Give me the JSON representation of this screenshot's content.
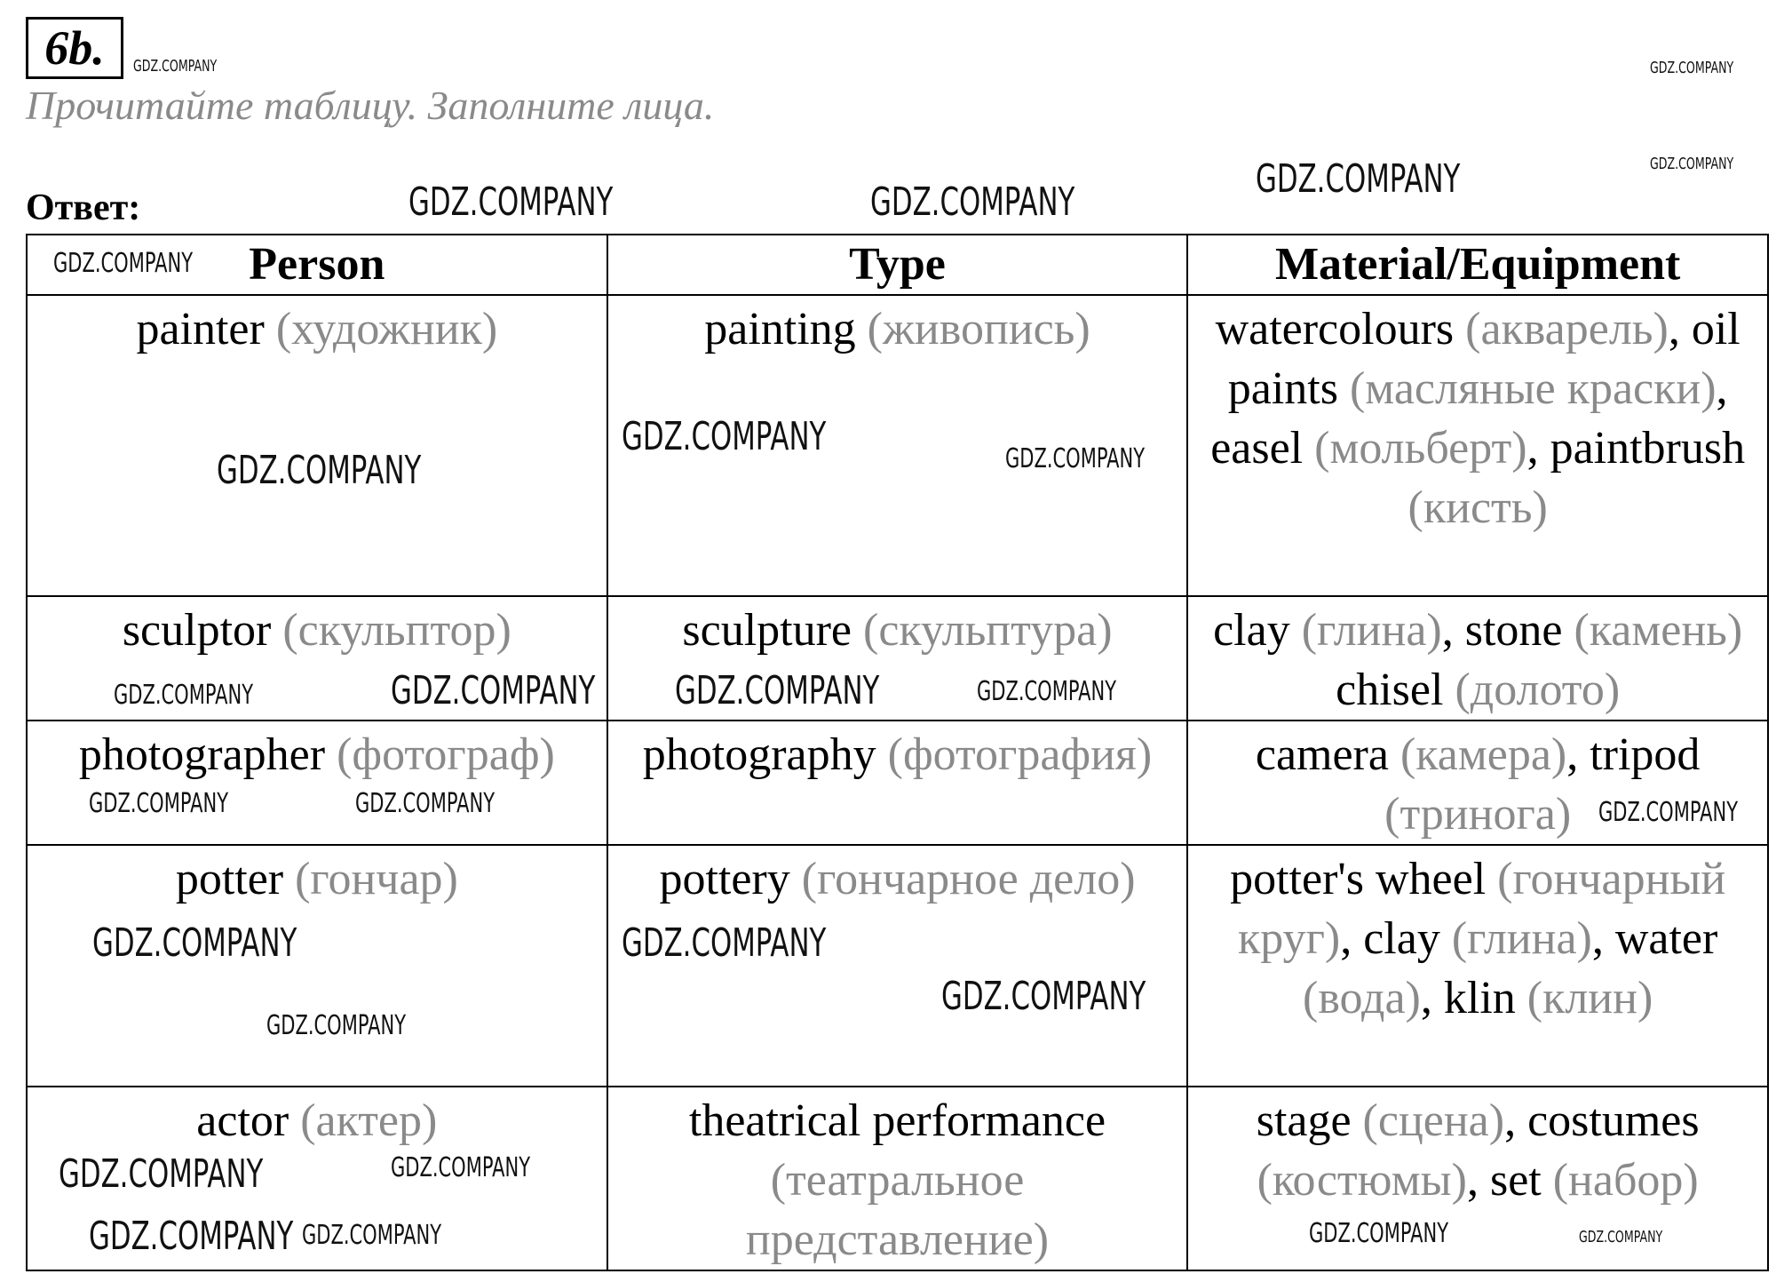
{
  "exercise_number": "6b.",
  "instruction": "Прочитайте таблицу. Заполните лица.",
  "answer_label": "Ответ:",
  "watermark": "GDZ.COMPANY",
  "table": {
    "headers": [
      "Person",
      "Type",
      "Material/Equipment"
    ],
    "rows": [
      [
        [
          {
            "t": "painter "
          },
          {
            "t": "(художник)",
            "g": 1
          }
        ],
        [
          {
            "t": "painting "
          },
          {
            "t": "(живопись)",
            "g": 1
          }
        ],
        [
          {
            "t": "watercolours "
          },
          {
            "t": "(акварель)",
            "g": 1
          },
          {
            "t": ", oil paints "
          },
          {
            "t": "(масляные краски)",
            "g": 1
          },
          {
            "t": ", easel "
          },
          {
            "t": "(мольберт)",
            "g": 1
          },
          {
            "t": ", paintbrush "
          },
          {
            "t": "(кисть)",
            "g": 1
          }
        ]
      ],
      [
        [
          {
            "t": "sculptor "
          },
          {
            "t": "(скульптор)",
            "g": 1
          }
        ],
        [
          {
            "t": "sculpture "
          },
          {
            "t": "(скульптура)",
            "g": 1
          }
        ],
        [
          {
            "t": "clay "
          },
          {
            "t": "(глина)",
            "g": 1
          },
          {
            "t": ", stone "
          },
          {
            "t": "(камень)",
            "g": 1
          },
          {
            "t": " chisel "
          },
          {
            "t": "(долото)",
            "g": 1
          }
        ]
      ],
      [
        [
          {
            "t": "photographer "
          },
          {
            "t": "(фотограф)",
            "g": 1
          }
        ],
        [
          {
            "t": "photography "
          },
          {
            "t": "(фотография)",
            "g": 1
          }
        ],
        [
          {
            "t": "camera "
          },
          {
            "t": "(камера)",
            "g": 1
          },
          {
            "t": ", tripod "
          },
          {
            "t": "(тринога)",
            "g": 1
          }
        ]
      ],
      [
        [
          {
            "t": "potter "
          },
          {
            "t": "(гончар)",
            "g": 1
          }
        ],
        [
          {
            "t": "pottery "
          },
          {
            "t": "(гончарное дело)",
            "g": 1
          }
        ],
        [
          {
            "t": "potter's wheel "
          },
          {
            "t": "(гончарный круг)",
            "g": 1
          },
          {
            "t": ", clay "
          },
          {
            "t": "(глина)",
            "g": 1
          },
          {
            "t": ", water "
          },
          {
            "t": "(вода)",
            "g": 1
          },
          {
            "t": ", klin "
          },
          {
            "t": "(клин)",
            "g": 1
          }
        ]
      ],
      [
        [
          {
            "t": "actor "
          },
          {
            "t": "(актер)",
            "g": 1
          }
        ],
        [
          {
            "t": "theatrical performance "
          },
          {
            "t": "(театральное представление)",
            "g": 1
          }
        ],
        [
          {
            "t": "stage "
          },
          {
            "t": "(сцена)",
            "g": 1
          },
          {
            "t": ", costumes "
          },
          {
            "t": "(костюмы)",
            "g": 1
          },
          {
            "t": ", set "
          },
          {
            "t": "(набор)",
            "g": 1
          }
        ]
      ]
    ]
  }
}
